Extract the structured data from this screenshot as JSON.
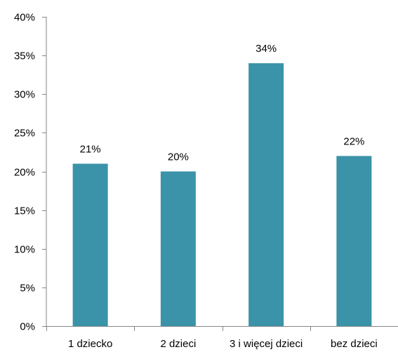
{
  "chart_data": {
    "type": "bar",
    "title": "",
    "xlabel": "",
    "ylabel": "",
    "categories": [
      "1 dziecko",
      "2 dzieci",
      "3 i więcej dzieci",
      "bez dzieci"
    ],
    "values": [
      21,
      20,
      34,
      22
    ],
    "data_labels": [
      "21%",
      "20%",
      "34%",
      "22%"
    ],
    "ylim": [
      0,
      40
    ],
    "y_ticks": [
      0,
      5,
      10,
      15,
      20,
      25,
      30,
      35,
      40
    ],
    "y_tick_labels": [
      "0%",
      "5%",
      "10%",
      "15%",
      "20%",
      "25%",
      "30%",
      "35%",
      "40%"
    ],
    "grid": false,
    "legend": "none",
    "bar_color": "#3A93A8"
  }
}
